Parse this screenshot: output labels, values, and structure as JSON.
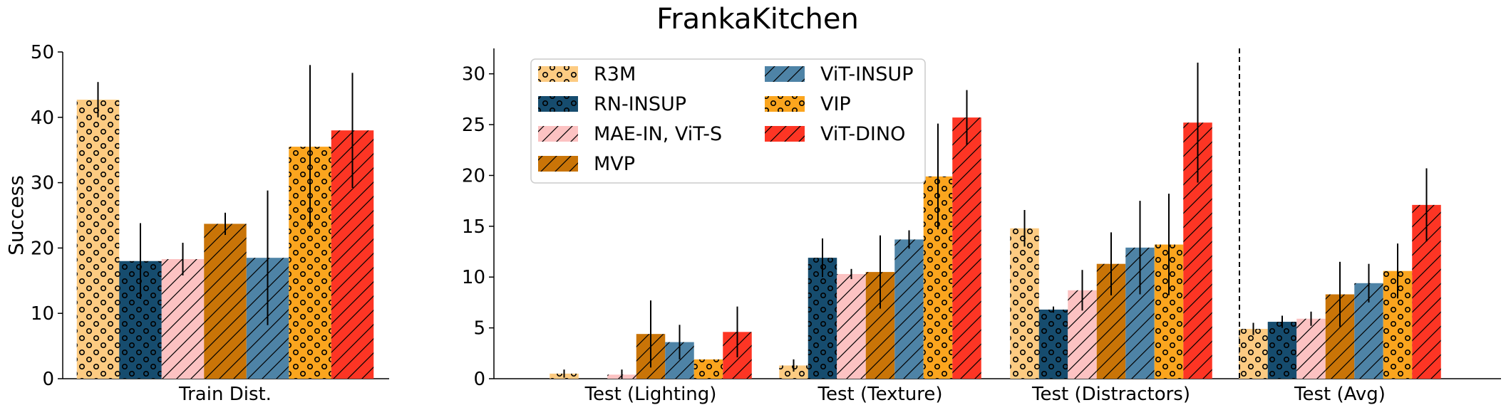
{
  "title": "FrankaKitchen",
  "chart_data": [
    {
      "type": "bar",
      "panel": "left",
      "ylabel": "Success",
      "ylim": [
        0,
        50
      ],
      "yticks": [
        0,
        10,
        20,
        30,
        40,
        50
      ],
      "categories": [
        "Train Dist."
      ],
      "series": [
        {
          "name": "R3M",
          "values": [
            42.7
          ],
          "errors": [
            2.7
          ]
        },
        {
          "name": "RN-INSUP",
          "values": [
            18.0
          ],
          "errors": [
            5.8
          ]
        },
        {
          "name": "MAE-IN, ViT-S",
          "values": [
            18.3
          ],
          "errors": [
            2.5
          ]
        },
        {
          "name": "MVP",
          "values": [
            23.7
          ],
          "errors": [
            1.7
          ]
        },
        {
          "name": "ViT-INSUP",
          "values": [
            18.5
          ],
          "errors": [
            10.3
          ]
        },
        {
          "name": "VIP",
          "values": [
            35.5
          ],
          "errors": [
            12.5
          ]
        },
        {
          "name": "ViT-DINO",
          "values": [
            38.0
          ],
          "errors": [
            8.8
          ]
        }
      ]
    },
    {
      "type": "bar",
      "panel": "right",
      "ylabel": "",
      "ylim": [
        0,
        32.5
      ],
      "yticks": [
        0,
        5,
        10,
        15,
        20,
        25,
        30
      ],
      "categories": [
        "Test (Lighting)",
        "Test (Texture)",
        "Test (Distractors)",
        "Test (Avg)"
      ],
      "divider_after_category": 2,
      "series": [
        {
          "name": "R3M",
          "values": [
            0.5,
            1.3,
            14.8,
            4.9
          ],
          "errors": [
            0.4,
            0.6,
            1.8,
            0.6
          ]
        },
        {
          "name": "RN-INSUP",
          "values": [
            0.0,
            11.9,
            6.8,
            5.6
          ],
          "errors": [
            0.0,
            1.9,
            0.3,
            0.6
          ]
        },
        {
          "name": "MAE-IN, ViT-S",
          "values": [
            0.4,
            10.3,
            8.7,
            5.9
          ],
          "errors": [
            0.5,
            0.5,
            2.0,
            0.7
          ]
        },
        {
          "name": "MVP",
          "values": [
            4.4,
            10.5,
            11.3,
            8.3
          ],
          "errors": [
            3.3,
            3.6,
            3.1,
            3.2
          ]
        },
        {
          "name": "ViT-INSUP",
          "values": [
            3.6,
            13.7,
            12.9,
            9.4
          ],
          "errors": [
            1.7,
            0.9,
            4.6,
            1.9
          ]
        },
        {
          "name": "VIP",
          "values": [
            1.9,
            19.9,
            13.2,
            10.6
          ],
          "errors": [
            0.0,
            5.2,
            5.0,
            2.7
          ]
        },
        {
          "name": "ViT-DINO",
          "values": [
            4.6,
            25.7,
            25.2,
            17.1
          ],
          "errors": [
            2.5,
            2.7,
            5.9,
            3.6
          ]
        }
      ]
    }
  ],
  "legend": {
    "placement": "top-left of right panel",
    "columns": 2,
    "items": [
      "R3M",
      "RN-INSUP",
      "MAE-IN, ViT-S",
      "MVP",
      "ViT-INSUP",
      "VIP",
      "ViT-DINO"
    ]
  },
  "series_styles": [
    {
      "name": "R3M",
      "color": "#fdcb82",
      "pattern": "circles"
    },
    {
      "name": "RN-INSUP",
      "color": "#164c6e",
      "pattern": "circles"
    },
    {
      "name": "MAE-IN, ViT-S",
      "color": "#fcc2c2",
      "pattern": "hatch"
    },
    {
      "name": "MVP",
      "color": "#c97407",
      "pattern": "hatch"
    },
    {
      "name": "ViT-INSUP",
      "color": "#4e83a6",
      "pattern": "hatch"
    },
    {
      "name": "VIP",
      "color": "#fba51e",
      "pattern": "circles"
    },
    {
      "name": "ViT-DINO",
      "color": "#fd3524",
      "pattern": "hatch"
    }
  ]
}
